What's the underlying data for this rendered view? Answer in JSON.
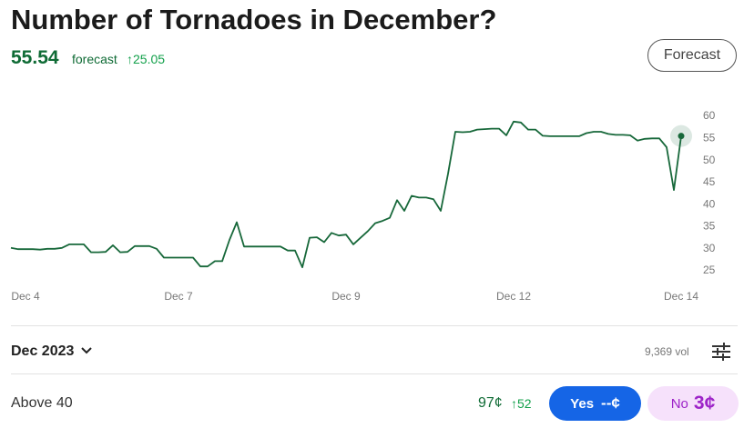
{
  "header": {
    "title": "Number of Tornadoes in December?",
    "value": "55.54",
    "label": "forecast",
    "change": "↑25.05",
    "button": "Forecast"
  },
  "chart_data": {
    "type": "line",
    "color": "#17683a",
    "categories": [
      null,
      null,
      "Dec 4",
      null,
      null,
      null,
      null,
      null,
      null,
      null,
      null,
      null,
      null,
      null,
      null,
      null,
      null,
      null,
      null,
      null,
      null,
      null,
      null,
      "Dec 7",
      null,
      null,
      null,
      null,
      null,
      null,
      null,
      null,
      null,
      null,
      null,
      null,
      null,
      null,
      null,
      null,
      null,
      null,
      null,
      null,
      null,
      null,
      "Dec 9",
      null,
      null,
      null,
      null,
      null,
      null,
      null,
      null,
      null,
      null,
      null,
      null,
      null,
      null,
      null,
      null,
      null,
      null,
      null,
      null,
      null,
      null,
      "Dec 12",
      null,
      null,
      null,
      null,
      null,
      null,
      null,
      null,
      null,
      null,
      null,
      null,
      null,
      null,
      null,
      null,
      null,
      null,
      null,
      null,
      null,
      null,
      "Dec 14"
    ],
    "values": [
      30.2,
      29.9,
      29.9,
      29.9,
      29.8,
      30,
      30,
      30.2,
      31,
      31,
      31,
      29.2,
      29.2,
      29.3,
      30.8,
      29.2,
      29.3,
      30.6,
      30.6,
      30.6,
      30,
      28,
      28,
      28,
      28,
      28,
      26,
      26,
      27.2,
      27.2,
      32,
      36,
      30.5,
      30.5,
      30.5,
      30.5,
      30.5,
      30.5,
      29.6,
      29.6,
      25.8,
      32.5,
      32.6,
      31.5,
      33.6,
      33,
      33.2,
      31,
      32.5,
      34,
      35.8,
      36.3,
      37,
      41,
      38.6,
      42,
      41.6,
      41.6,
      41.2,
      38.6,
      47,
      56.5,
      56.4,
      56.5,
      57,
      57.1,
      57.2,
      57.2,
      55.7,
      58.8,
      58.6,
      57,
      57,
      55.6,
      55.5,
      55.5,
      55.5,
      55.5,
      55.5,
      56.2,
      56.5,
      56.5,
      56,
      55.8,
      55.8,
      55.7,
      54.5,
      54.9,
      55,
      55,
      53,
      43.3,
      55.54
    ],
    "ylim": [
      24,
      62
    ],
    "yticks": [
      25,
      30,
      35,
      40,
      45,
      50,
      55,
      60
    ],
    "grid": false
  },
  "market": {
    "period": "Dec 2023",
    "volume": "9,369 vol",
    "outcome": "Above 40",
    "price": "97¢",
    "price_change": "↑52",
    "yes_label": "Yes",
    "yes_price": "--¢",
    "no_label": "No",
    "no_price": "3¢"
  }
}
